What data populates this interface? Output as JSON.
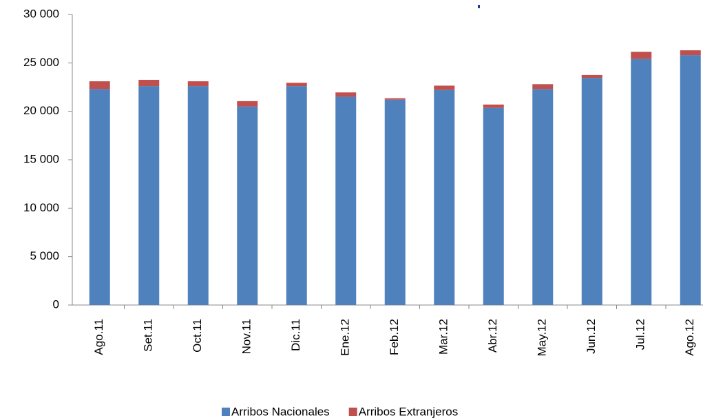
{
  "chart_data": {
    "type": "stacked_bar",
    "categories": [
      "Ago.11",
      "Set.11",
      "Oct.11",
      "Nov.11",
      "Dic.11",
      "Ene.12",
      "Feb.12",
      "Mar.12",
      "Abr.12",
      "May.12",
      "Jun.12",
      "Jul.12",
      "Ago.12"
    ],
    "series": [
      {
        "name": "Arribos Nacionales",
        "color": "#4f81bd",
        "values": [
          22300,
          22600,
          22600,
          20500,
          22600,
          21500,
          21200,
          22200,
          20350,
          22300,
          23450,
          25400,
          25800
        ]
      },
      {
        "name": "Arribos Extranjeros",
        "color": "#c0504d",
        "values": [
          800,
          650,
          500,
          550,
          350,
          450,
          150,
          450,
          350,
          500,
          300,
          750,
          500
        ]
      }
    ],
    "ylim": [
      0,
      30000
    ],
    "yticks": [
      0,
      {
        "value": 5000,
        "label": "5 000"
      },
      {
        "value": 10000,
        "label": "10 000"
      },
      {
        "value": 15000,
        "label": "15 000"
      },
      {
        "value": 20000,
        "label": "20 000"
      },
      {
        "value": 25000,
        "label": "25 000"
      },
      {
        "value": 30000,
        "label": "30 000"
      }
    ],
    "legend": "bottom"
  }
}
